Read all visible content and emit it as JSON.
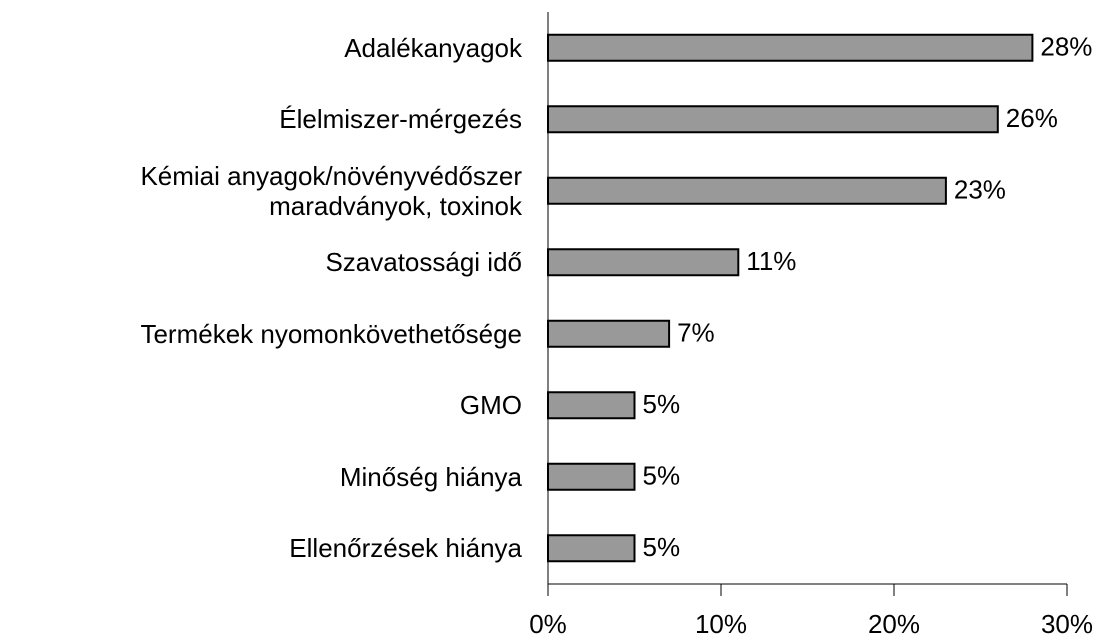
{
  "chart_data": {
    "type": "bar",
    "orientation": "horizontal",
    "categories": [
      "Adalékanyagok",
      "Élelmiszer-mérgezés",
      "Kémiai anyagok/növényvédőszer\nmaradványok, toxinok",
      "Szavatossági idő",
      "Termékek nyomonkövethetősége",
      "GMO",
      "Minőség hiánya",
      "Ellenőrzések hiánya"
    ],
    "values": [
      28,
      26,
      23,
      11,
      7,
      5,
      5,
      5
    ],
    "value_labels": [
      "28%",
      "26%",
      "23%",
      "11%",
      "7%",
      "5%",
      "5%",
      "5%"
    ],
    "color": "#999999",
    "xlim": [
      0,
      30
    ],
    "xticks": [
      {
        "value": 0,
        "label": "0%"
      },
      {
        "value": 10,
        "label": "10%"
      },
      {
        "value": 20,
        "label": "20%"
      },
      {
        "value": 30,
        "label": "30%"
      }
    ]
  }
}
